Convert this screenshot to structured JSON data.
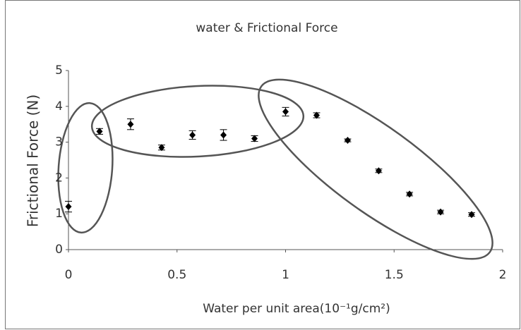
{
  "chart_data": {
    "type": "scatter",
    "title": "water & Frictional Force",
    "x_label": "Water per unit area(10⁻¹g/cm²)",
    "y_label": "Frictional Force (N)",
    "x": [
      0,
      0.143,
      0.286,
      0.429,
      0.571,
      0.714,
      0.857,
      1.0,
      1.143,
      1.286,
      1.429,
      1.571,
      1.714,
      1.857
    ],
    "values": [
      1.2,
      3.3,
      3.5,
      2.85,
      3.2,
      3.2,
      3.1,
      3.85,
      3.75,
      3.05,
      2.2,
      1.55,
      1.05,
      0.98
    ],
    "errors": [
      0.15,
      0.08,
      0.15,
      0.07,
      0.12,
      0.15,
      0.08,
      0.12,
      0.07,
      0.04,
      0.05,
      0.05,
      0.05,
      0.05
    ],
    "color": "#000000",
    "xlim": [
      0,
      2
    ],
    "xticks": [
      0,
      0.5,
      1,
      1.5,
      2
    ],
    "ylim": [
      0,
      5
    ],
    "yticks": [
      0,
      1,
      2,
      3,
      4,
      5
    ]
  }
}
